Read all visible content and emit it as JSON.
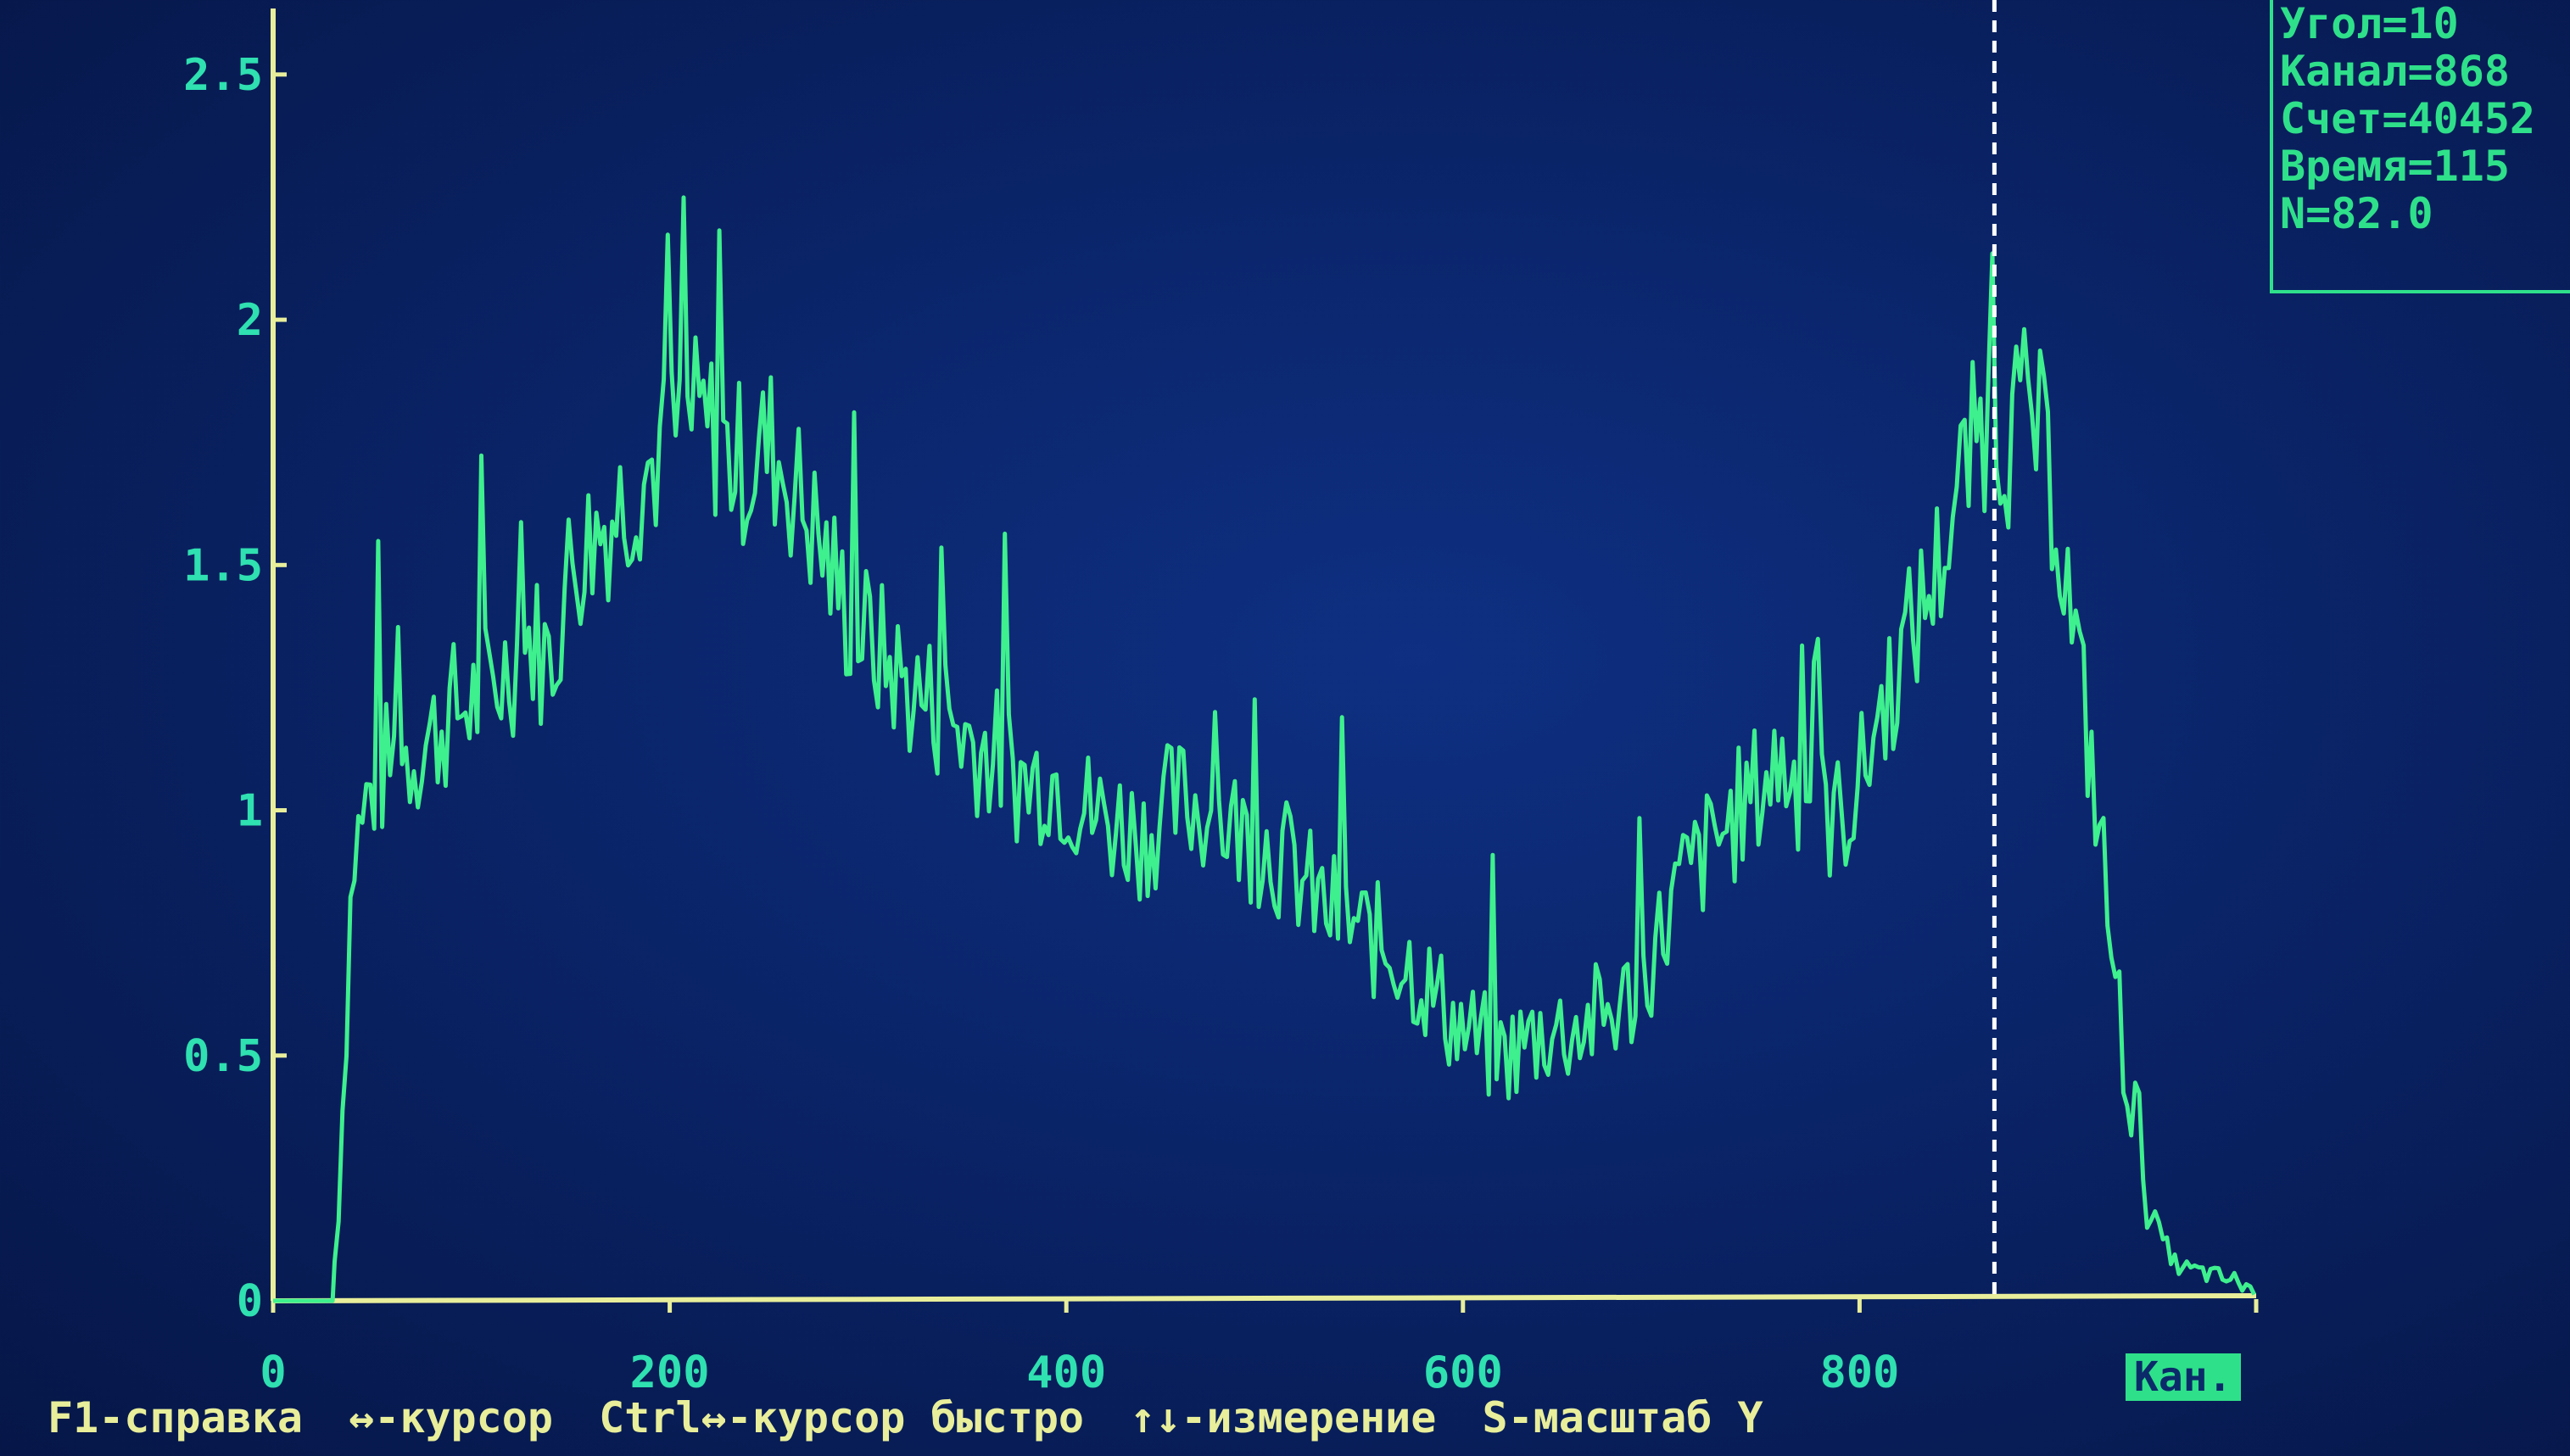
{
  "chart_data": {
    "type": "line",
    "xlim": [
      0,
      1000
    ],
    "ylim": [
      0,
      2.6
    ],
    "x_ticks": [
      "0",
      "200",
      "400",
      "600",
      "800"
    ],
    "y_ticks": [
      "0",
      "0.5",
      "1",
      "1.5",
      "2",
      "2.5"
    ],
    "cursor_x": 868,
    "series": [
      {
        "x": [
          0,
          30,
          35,
          40,
          50,
          60,
          70,
          80,
          90,
          100,
          110,
          120,
          130,
          140,
          150,
          160,
          170,
          180,
          190,
          200,
          210,
          220,
          230,
          240,
          250,
          260,
          270,
          280,
          290,
          300,
          310,
          320,
          330,
          340,
          350,
          360,
          370,
          380,
          390,
          400,
          410,
          420,
          430,
          440,
          450,
          460,
          470,
          480,
          490,
          500,
          510,
          520,
          530,
          540,
          550,
          560,
          570,
          580,
          590,
          600,
          610,
          620,
          630,
          640,
          650,
          660,
          670,
          680,
          690,
          700,
          710,
          720,
          730,
          740,
          750,
          760,
          770,
          780,
          790,
          800,
          810,
          820,
          830,
          840,
          850,
          860,
          868,
          875,
          880,
          890,
          900,
          910,
          920,
          930,
          940,
          950,
          960,
          970,
          980,
          990,
          1000
        ],
        "y": [
          0,
          0,
          0.4,
          0.9,
          1.05,
          1.1,
          1.12,
          1.15,
          1.2,
          1.22,
          1.25,
          1.3,
          1.35,
          1.3,
          1.5,
          1.55,
          1.6,
          1.65,
          1.7,
          1.75,
          1.8,
          1.78,
          1.72,
          1.7,
          1.75,
          1.68,
          1.6,
          1.5,
          1.4,
          1.35,
          1.3,
          1.25,
          1.22,
          1.2,
          1.15,
          1.12,
          1.1,
          1.05,
          1.08,
          1.05,
          1.0,
          0.98,
          0.97,
          0.95,
          1.0,
          1.02,
          1.0,
          0.98,
          0.95,
          0.93,
          0.9,
          0.85,
          0.8,
          0.78,
          0.75,
          0.72,
          0.7,
          0.65,
          0.6,
          0.55,
          0.52,
          0.5,
          0.52,
          0.55,
          0.55,
          0.56,
          0.58,
          0.6,
          0.65,
          0.75,
          0.85,
          0.9,
          0.95,
          1.0,
          1.05,
          1.1,
          1.05,
          1.0,
          0.98,
          1.05,
          1.2,
          1.3,
          1.4,
          1.5,
          1.65,
          1.78,
          1.8,
          1.75,
          1.82,
          1.78,
          1.6,
          1.3,
          1.0,
          0.6,
          0.35,
          0.15,
          0.07,
          0.06,
          0.05,
          0.04,
          0.02
        ]
      }
    ]
  },
  "info_panel": {
    "angle": "Угол=10",
    "channel": "Канал=868",
    "count": "Счет=40452",
    "time": "Время=115",
    "n": "N=82.0"
  },
  "help_bar": {
    "f1": "F1-справка",
    "cursor": "↔-курсор",
    "cursor_fast": "Ctrl↔-курсор быстро",
    "measure": "↑↓-измерение",
    "scale": "S-масштаб Y"
  },
  "x_unit_label": "Кан.",
  "colors": {
    "trace": "#3ef08e",
    "axis": "#e8ee9a",
    "tick_labels": "#2fe0b0",
    "background": "#0a2468"
  }
}
